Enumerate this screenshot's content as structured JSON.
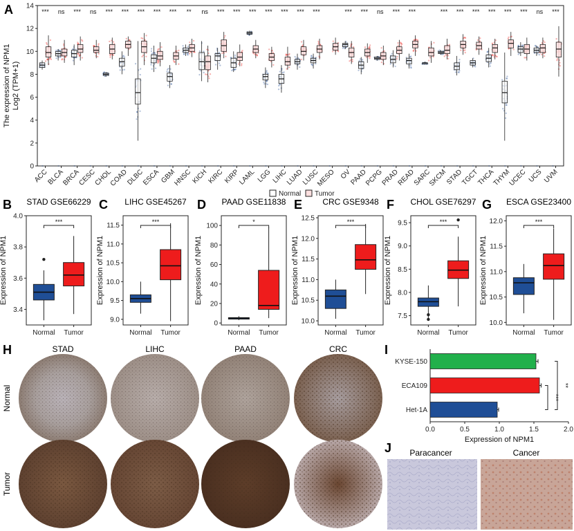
{
  "panels": {
    "A": {
      "letter": "A"
    },
    "B": {
      "letter": "B"
    },
    "C": {
      "letter": "C"
    },
    "D": {
      "letter": "D"
    },
    "E": {
      "letter": "E"
    },
    "F": {
      "letter": "F"
    },
    "G": {
      "letter": "G"
    },
    "H": {
      "letter": "H"
    },
    "I": {
      "letter": "I"
    },
    "J": {
      "letter": "J"
    }
  },
  "colors": {
    "normal": "#2f5597",
    "tumor_fill": "#ffe0e0",
    "tumor_dots": "#e8211d",
    "bar_green": "#21b04b",
    "bar_red": "#ee1c1c",
    "bar_blue": "#1f4e96",
    "ihc_brown": "#6b4a35",
    "ihc_light": "#c9c3cc"
  },
  "chart_data": [
    {
      "id": "A",
      "type": "box",
      "title": "",
      "ylabel_line1": "The expression of NPM1",
      "ylabel_line2": "Log2 (TPM+1)",
      "ylim": [
        0,
        14
      ],
      "yticks": [
        0,
        2,
        4,
        6,
        8,
        10,
        12,
        14
      ],
      "legend": {
        "position": "bottom-center",
        "entries": [
          "Normal",
          "Tumor"
        ]
      },
      "categories": [
        "ACC",
        "BLCA",
        "BRCA",
        "CESC",
        "CHOL",
        "COAD",
        "DLBC",
        "ESCA",
        "GBM",
        "HNSC",
        "KICH",
        "KIRC",
        "KIRP",
        "LAML",
        "LGG",
        "LIHC",
        "LUAD",
        "LUSC",
        "MESO",
        "OV",
        "PAAD",
        "PCPG",
        "PRAD",
        "READ",
        "SARC",
        "SKCM",
        "STAD",
        "TGCT",
        "THCA",
        "THYM",
        "UCEC",
        "UCS",
        "UVM"
      ],
      "significance": [
        "***",
        "ns",
        "***",
        "ns",
        "***",
        "***",
        "***",
        "***",
        "***",
        "**",
        "ns",
        "***",
        "***",
        "***",
        "***",
        "***",
        "***",
        "***",
        "",
        "***",
        "***",
        "ns",
        "***",
        "***",
        "",
        "***",
        "***",
        "***",
        "***",
        "***",
        "***",
        "ns",
        "***"
      ],
      "series": [
        {
          "name": "Normal",
          "boxes": [
            [
              8.4,
              8.6,
              8.8,
              9.0,
              9.2
            ],
            [
              9.2,
              9.6,
              9.8,
              10.0,
              10.2
            ],
            [
              8.8,
              9.5,
              9.8,
              10.1,
              10.6
            ],
            [
              null,
              null,
              null,
              null,
              null
            ],
            [
              7.8,
              7.9,
              8.0,
              8.1,
              8.2
            ],
            [
              8.0,
              8.7,
              9.1,
              9.4,
              10.0
            ],
            [
              2.2,
              5.4,
              6.4,
              7.6,
              10.9
            ],
            [
              8.2,
              9.0,
              9.4,
              9.7,
              10.5
            ],
            [
              6.8,
              7.4,
              7.8,
              8.1,
              8.8
            ],
            [
              9.6,
              9.9,
              10.1,
              10.3,
              10.6
            ],
            [
              7.4,
              8.4,
              9.1,
              9.9,
              10.9
            ],
            [
              8.4,
              9.2,
              9.6,
              9.8,
              10.3
            ],
            [
              8.2,
              8.6,
              9.0,
              9.4,
              10.0
            ],
            [
              11.4,
              11.5,
              11.6,
              11.7,
              11.8
            ],
            [
              6.8,
              7.5,
              7.8,
              8.0,
              8.6
            ],
            [
              6.4,
              7.2,
              7.6,
              8.0,
              8.8
            ],
            [
              8.4,
              8.9,
              9.1,
              9.3,
              9.8
            ],
            [
              8.5,
              9.0,
              9.2,
              9.4,
              9.8
            ],
            [
              null,
              null,
              null,
              null,
              null
            ],
            [
              10.2,
              10.4,
              10.6,
              10.7,
              10.9
            ],
            [
              8.0,
              8.5,
              8.8,
              9.1,
              9.5
            ],
            [
              9.2,
              9.3,
              9.4,
              9.5,
              9.6
            ],
            [
              8.6,
              9.0,
              9.3,
              9.6,
              10.1
            ],
            [
              8.5,
              8.9,
              9.2,
              9.4,
              9.8
            ],
            [
              8.9,
              8.9,
              9.0,
              9.0,
              9.1
            ],
            [
              9.7,
              9.8,
              9.9,
              10.0,
              10.1
            ],
            [
              7.9,
              8.4,
              8.7,
              9.0,
              9.6
            ],
            [
              8.6,
              8.8,
              9.0,
              9.2,
              9.4
            ],
            [
              8.6,
              9.1,
              9.4,
              9.7,
              10.3
            ],
            [
              2.2,
              5.5,
              6.4,
              7.4,
              9.9
            ],
            [
              9.6,
              9.9,
              10.2,
              10.4,
              10.8
            ],
            [
              9.6,
              9.9,
              10.1,
              10.3,
              10.5
            ],
            [
              null,
              null,
              null,
              null,
              null
            ]
          ]
        },
        {
          "name": "Tumor",
          "boxes": [
            [
              8.8,
              9.5,
              9.9,
              10.4,
              11.4
            ],
            [
              9.0,
              9.6,
              9.9,
              10.2,
              11.0
            ],
            [
              9.2,
              9.9,
              10.2,
              10.6,
              11.3
            ],
            [
              9.4,
              9.9,
              10.1,
              10.4,
              11.0
            ],
            [
              9.3,
              9.8,
              10.2,
              10.6,
              11.2
            ],
            [
              9.6,
              10.3,
              10.6,
              10.9,
              11.3
            ],
            [
              8.8,
              9.9,
              10.4,
              10.9,
              11.6
            ],
            [
              8.7,
              9.3,
              9.6,
              10.0,
              10.8
            ],
            [
              8.8,
              9.3,
              9.6,
              9.9,
              10.5
            ],
            [
              9.5,
              10.0,
              10.3,
              10.6,
              11.1
            ],
            [
              7.3,
              8.4,
              9.1,
              9.6,
              10.5
            ],
            [
              9.4,
              10.0,
              10.5,
              11.0,
              11.7
            ],
            [
              8.7,
              9.2,
              9.5,
              9.9,
              10.6
            ],
            [
              9.4,
              9.9,
              10.2,
              10.5,
              11.0
            ],
            [
              8.6,
              9.2,
              9.5,
              9.8,
              10.4
            ],
            [
              8.4,
              8.8,
              9.1,
              9.5,
              10.4
            ],
            [
              9.2,
              9.7,
              10.0,
              10.4,
              11.0
            ],
            [
              9.3,
              9.9,
              10.2,
              10.5,
              11.1
            ],
            [
              9.7,
              10.1,
              10.4,
              10.7,
              11.2
            ],
            [
              8.9,
              9.5,
              9.9,
              10.3,
              10.9
            ],
            [
              9.0,
              9.6,
              9.9,
              10.2,
              10.7
            ],
            [
              8.8,
              9.3,
              9.6,
              9.9,
              10.5
            ],
            [
              9.2,
              9.8,
              10.1,
              10.4,
              11.0
            ],
            [
              9.6,
              10.3,
              10.6,
              10.9,
              11.4
            ],
            [
              9.0,
              9.6,
              9.9,
              10.3,
              10.9
            ],
            [
              9.3,
              9.8,
              10.1,
              10.5,
              11.1
            ],
            [
              9.7,
              10.3,
              10.6,
              10.9,
              11.5
            ],
            [
              9.7,
              10.2,
              10.5,
              10.8,
              11.3
            ],
            [
              9.3,
              9.9,
              10.3,
              10.6,
              11.1
            ],
            [
              9.6,
              10.3,
              10.7,
              11.0,
              11.7
            ],
            [
              9.2,
              9.8,
              10.2,
              10.6,
              11.2
            ],
            [
              9.4,
              9.9,
              10.3,
              10.6,
              11.2
            ],
            [
              7.8,
              9.5,
              10.2,
              10.8,
              12.2
            ]
          ]
        }
      ]
    },
    {
      "id": "B",
      "type": "box",
      "title": "STAD GSE66229",
      "ylabel": "Expression of NPM1",
      "ylim": [
        3.3,
        4.0
      ],
      "yticks": [
        3.4,
        3.6,
        3.8,
        4.0
      ],
      "yticklabels": [
        "3.4",
        "3.6",
        "3.8",
        "4.0"
      ],
      "categories": [
        "Normal",
        "Tumor"
      ],
      "significance": "***",
      "boxes": [
        [
          3.33,
          3.46,
          3.51,
          3.56,
          3.65
        ],
        [
          3.37,
          3.55,
          3.62,
          3.7,
          3.87
        ]
      ],
      "outliers": [
        [
          3.72
        ],
        []
      ]
    },
    {
      "id": "C",
      "type": "box",
      "title": "LIHC GSE45267",
      "ylabel": "Expression of NPM1",
      "ylim": [
        8.85,
        11.75
      ],
      "yticks": [
        9.0,
        9.5,
        10.0,
        10.5,
        11.0,
        11.5
      ],
      "yticklabels": [
        "9.0",
        "9.5",
        "10.0",
        "10.5",
        "11.0",
        "11.5"
      ],
      "categories": [
        "Normal",
        "Tumor"
      ],
      "significance": "***",
      "boxes": [
        [
          9.15,
          9.45,
          9.55,
          9.65,
          10.0
        ],
        [
          8.95,
          10.05,
          10.42,
          10.85,
          11.55
        ]
      ],
      "outliers": [
        [],
        []
      ]
    },
    {
      "id": "D",
      "type": "box",
      "title": "PAAD GSE11838",
      "ylabel": "Expression of NPM1",
      "ylim": [
        -2,
        110
      ],
      "yticks": [
        0,
        20,
        40,
        60,
        80,
        100
      ],
      "yticklabels": [
        "0",
        "20",
        "40",
        "60",
        "80",
        "100"
      ],
      "categories": [
        "Normal",
        "Tumor"
      ],
      "significance": "*",
      "boxes": [
        [
          3,
          4,
          5,
          5.5,
          7
        ],
        [
          5,
          14,
          18,
          54,
          98
        ]
      ],
      "outliers": [
        [],
        []
      ]
    },
    {
      "id": "E",
      "type": "box",
      "title": "CRC GSE9348",
      "ylabel": "Expression of NPM1",
      "ylim": [
        9.9,
        12.55
      ],
      "yticks": [
        10.0,
        10.5,
        11.0,
        11.5,
        12.0,
        12.5
      ],
      "yticklabels": [
        "10.0",
        "10.5",
        "11.0",
        "11.5",
        "12.0",
        "12.5"
      ],
      "categories": [
        "Normal",
        "Tumor"
      ],
      "significance": "***",
      "boxes": [
        [
          10.05,
          10.3,
          10.6,
          10.75,
          11.0
        ],
        [
          10.65,
          11.25,
          11.48,
          11.85,
          12.35
        ]
      ],
      "outliers": [
        [],
        []
      ]
    },
    {
      "id": "F",
      "type": "box",
      "title": "CHOL GSE76297",
      "ylabel": "Expression of NPM1",
      "ylim": [
        7.3,
        9.65
      ],
      "yticks": [
        7.5,
        8.0,
        8.5,
        9.0,
        9.5
      ],
      "yticklabels": [
        "7.5",
        "8.0",
        "8.5",
        "9.0",
        "9.5"
      ],
      "categories": [
        "Normal",
        "Tumor"
      ],
      "significance": "***",
      "boxes": [
        [
          7.45,
          7.7,
          7.8,
          7.88,
          8.15
        ],
        [
          7.7,
          8.3,
          8.48,
          8.68,
          9.2
        ]
      ],
      "outliers": [
        [
          7.42,
          7.52
        ],
        [
          9.56
        ]
      ]
    },
    {
      "id": "G",
      "type": "box",
      "title": "ESCA GSE23400",
      "ylabel": "Expression of NPM1",
      "ylim": [
        9.95,
        12.1
      ],
      "yticks": [
        10.0,
        10.5,
        11.0,
        11.5,
        12.0
      ],
      "yticklabels": [
        "10.0",
        "10.5",
        "11.0",
        "11.5",
        "12.0"
      ],
      "categories": [
        "Normal",
        "Tumor"
      ],
      "significance": "***",
      "boxes": [
        [
          10.18,
          10.55,
          10.78,
          10.88,
          11.15
        ],
        [
          10.05,
          10.85,
          11.12,
          11.35,
          11.85
        ]
      ],
      "outliers": [
        [],
        []
      ]
    },
    {
      "id": "I",
      "type": "bar",
      "orientation": "horizontal",
      "title": "",
      "xlabel": "Expression of NPM1",
      "xlim": [
        0,
        2.0
      ],
      "xticks": [
        0,
        0.5,
        1.0,
        1.5,
        2.0
      ],
      "xticklabels": [
        "0.0",
        "0.5",
        "1.0",
        "1.5",
        "2.0"
      ],
      "categories": [
        "KYSE-150",
        "ECA109",
        "Het-1A"
      ],
      "values": [
        1.53,
        1.58,
        0.97
      ],
      "errors": [
        0.03,
        0.025,
        0.02
      ],
      "significance": [
        {
          "label": "***",
          "between": [
            "ECA109",
            "Het-1A"
          ]
        },
        {
          "label": "**",
          "between": [
            "KYSE-150",
            "Het-1A"
          ]
        }
      ]
    }
  ],
  "panel_H": {
    "columns": [
      "STAD",
      "LIHC",
      "PAAD",
      "CRC"
    ],
    "rows": [
      "Normal",
      "Tumor"
    ]
  },
  "panel_J": {
    "labels": [
      "Paracancer",
      "Cancer"
    ]
  }
}
